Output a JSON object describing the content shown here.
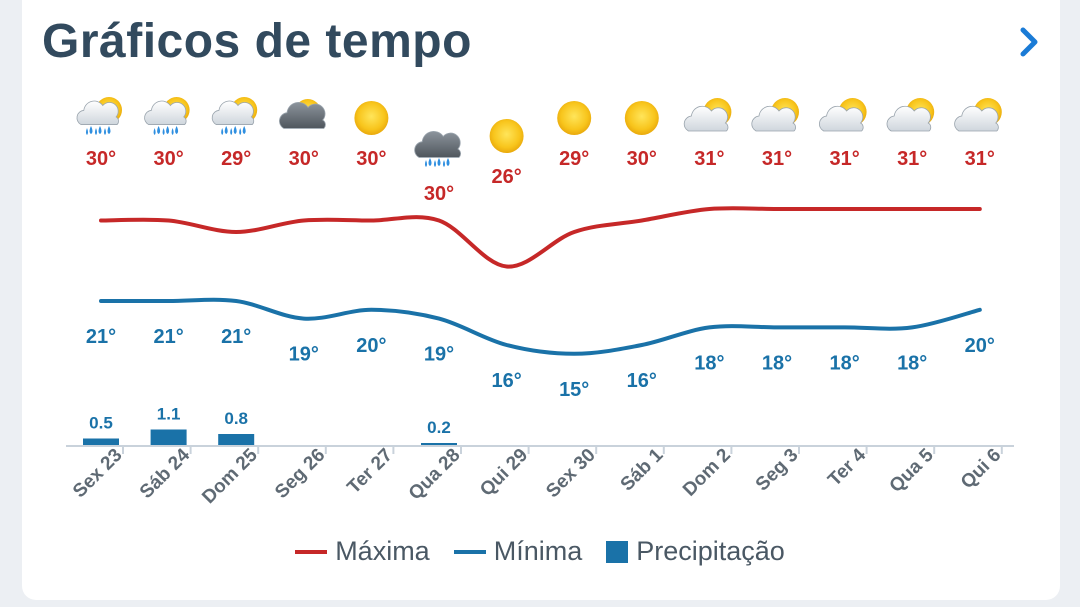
{
  "header": {
    "title": "Gráficos de tempo"
  },
  "colors": {
    "max": "#c62828",
    "min": "#1a72a8",
    "precip": "#1a72a8",
    "title": "#324a5e",
    "axis_text": "#5f6a74",
    "accent": "#1a7bd6"
  },
  "icons": [
    "sun-cloud-rain-icon",
    "sun-cloud-rain-icon",
    "sun-cloud-rain-icon",
    "cloud-icon",
    "sun-icon",
    "cloud-rain-icon",
    "sun-icon",
    "sun-icon",
    "sun-icon",
    "sun-cloud-icon",
    "sun-cloud-icon",
    "sun-cloud-icon",
    "sun-cloud-icon",
    "sun-cloud-icon"
  ],
  "legend": {
    "max": "Máxima",
    "min": "Mínima",
    "precip": "Precipitação"
  },
  "chart_data": {
    "type": "line",
    "categories": [
      "Sex 23",
      "Sáb 24",
      "Dom 25",
      "Seg 26",
      "Ter 27",
      "Qua 28",
      "Qui 29",
      "Sex 30",
      "Sáb 1",
      "Dom 2",
      "Seg 3",
      "Ter 4",
      "Qua 5",
      "Qui 6"
    ],
    "series": [
      {
        "name": "Máxima",
        "values": [
          30,
          30,
          29,
          30,
          30,
          30,
          26,
          29,
          30,
          31,
          31,
          31,
          31,
          31
        ],
        "labels": [
          "30°",
          "30°",
          "29°",
          "30°",
          "30°",
          "30°",
          "26°",
          "29°",
          "30°",
          "31°",
          "31°",
          "31°",
          "31°",
          "31°"
        ]
      },
      {
        "name": "Mínima",
        "values": [
          21,
          21,
          21,
          19,
          20,
          19,
          16,
          15,
          16,
          18,
          18,
          18,
          18,
          20
        ],
        "labels": [
          "21°",
          "21°",
          "21°",
          "19°",
          "20°",
          "19°",
          "16°",
          "15°",
          "16°",
          "18°",
          "18°",
          "18°",
          "18°",
          "20°"
        ]
      },
      {
        "name": "Precipitação",
        "type": "bar",
        "values": [
          0.5,
          1.1,
          0.8,
          0,
          0,
          0.2,
          0,
          0,
          0,
          0,
          0,
          0,
          0,
          0
        ],
        "labels": [
          "0.5",
          "1.1",
          "0.8",
          "",
          "",
          "0.2",
          "",
          "",
          "",
          "",
          "",
          "",
          "",
          ""
        ]
      }
    ],
    "ylim_temp": [
      12,
      34
    ],
    "ylim_precip": [
      0,
      2.5
    ]
  }
}
